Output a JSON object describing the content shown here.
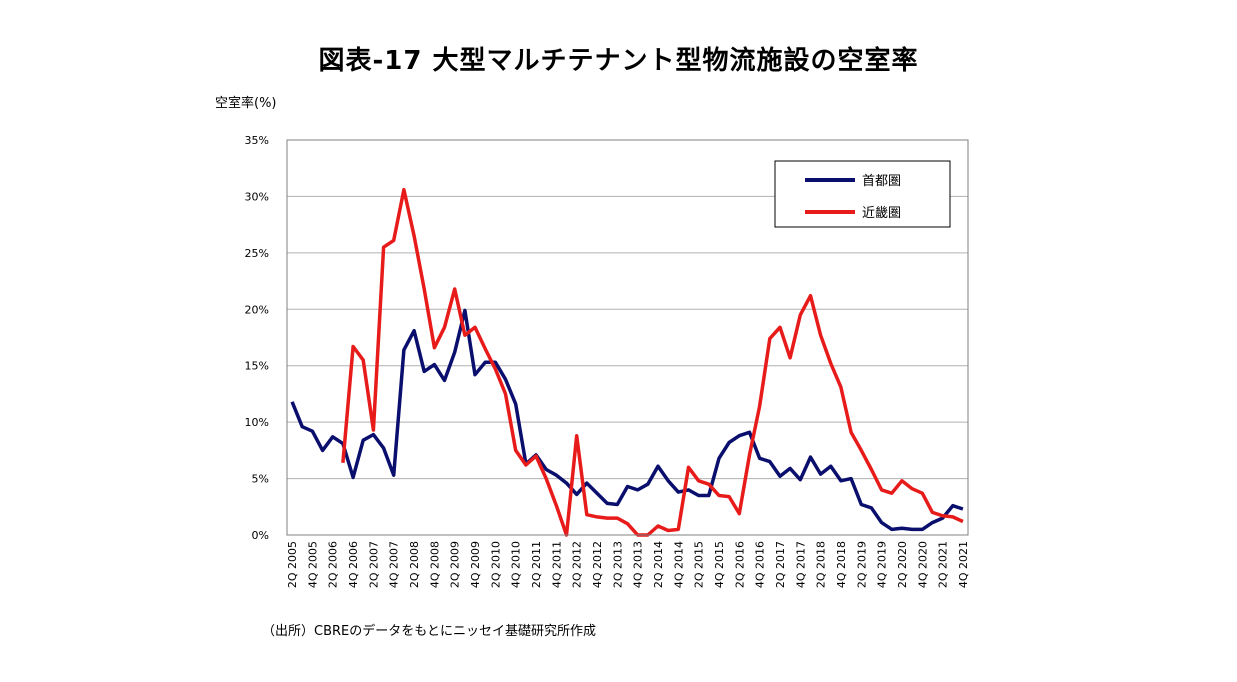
{
  "title": "図表-17  大型マルチテナント型物流施設の空室率",
  "source": "（出所）CBREのデータをもとにニッセイ基礎研究所作成",
  "colors": {
    "tokyo": "#0a0f6e",
    "kinki": "#e81b1b",
    "grid": "#b0b0b0"
  },
  "chart_data": {
    "type": "line",
    "ylabel": "空室率(%)",
    "ylim": [
      0,
      35
    ],
    "yticks": [
      "0%",
      "5%",
      "10%",
      "15%",
      "20%",
      "25%",
      "30%",
      "35%"
    ],
    "grid": true,
    "legend_position": "top-right",
    "x": [
      "2Q 2005",
      "3Q 2005",
      "4Q 2005",
      "1Q 2006",
      "2Q 2006",
      "3Q 2006",
      "4Q 2006",
      "1Q 2007",
      "2Q 2007",
      "3Q 2007",
      "4Q 2007",
      "1Q 2008",
      "2Q 2008",
      "3Q 2008",
      "4Q 2008",
      "1Q 2009",
      "2Q 2009",
      "3Q 2009",
      "4Q 2009",
      "1Q 2010",
      "2Q 2010",
      "3Q 2010",
      "4Q 2010",
      "1Q 2011",
      "2Q 2011",
      "3Q 2011",
      "4Q 2011",
      "1Q 2012",
      "2Q 2012",
      "3Q 2012",
      "4Q 2012",
      "1Q 2013",
      "2Q 2013",
      "3Q 2013",
      "4Q 2013",
      "1Q 2014",
      "2Q 2014",
      "3Q 2014",
      "4Q 2014",
      "1Q 2015",
      "2Q 2015",
      "3Q 2015",
      "4Q 2015",
      "1Q 2016",
      "2Q 2016",
      "3Q 2016",
      "4Q 2016",
      "1Q 2017",
      "2Q 2017",
      "3Q 2017",
      "4Q 2017",
      "1Q 2018",
      "2Q 2018",
      "3Q 2018",
      "4Q 2018",
      "1Q 2019",
      "2Q 2019",
      "3Q 2019",
      "4Q 2019",
      "1Q 2020",
      "2Q 2020",
      "3Q 2020",
      "4Q 2020",
      "1Q 2021",
      "2Q 2021",
      "3Q 2021",
      "4Q 2021"
    ],
    "xtick_labels": [
      "2Q 2005",
      "4Q 2005",
      "2Q 2006",
      "4Q 2006",
      "2Q 2007",
      "4Q 2007",
      "2Q 2008",
      "4Q 2008",
      "2Q 2009",
      "4Q 2009",
      "2Q 2010",
      "4Q 2010",
      "2Q 2011",
      "4Q 2011",
      "2Q 2012",
      "4Q 2012",
      "2Q 2013",
      "4Q 2013",
      "2Q 2014",
      "4Q 2014",
      "2Q 2015",
      "4Q 2015",
      "2Q 2016",
      "4Q 2016",
      "2Q 2017",
      "4Q 2017",
      "2Q 2018",
      "4Q 2018",
      "2Q 2019",
      "4Q 2019",
      "2Q 2020",
      "4Q 2020",
      "2Q 2021",
      "4Q 2021"
    ],
    "series": [
      {
        "name": "首都圏",
        "color_key": "tokyo",
        "values": [
          11.8,
          9.6,
          9.2,
          7.5,
          8.7,
          8.1,
          5.1,
          8.4,
          8.9,
          7.7,
          5.3,
          16.4,
          18.1,
          14.5,
          15.1,
          13.7,
          16.2,
          19.9,
          14.2,
          15.3,
          15.3,
          13.8,
          11.6,
          6.3,
          7.1,
          5.8,
          5.3,
          4.6,
          3.6,
          4.6,
          3.7,
          2.8,
          2.7,
          4.3,
          4.0,
          4.5,
          6.1,
          4.8,
          3.8,
          4.0,
          3.5,
          3.5,
          6.8,
          8.2,
          8.8,
          9.1,
          6.8,
          6.5,
          5.2,
          5.9,
          4.9,
          6.9,
          5.4,
          6.1,
          4.8,
          5.0,
          2.7,
          2.4,
          1.1,
          0.5,
          0.6,
          0.5,
          0.5,
          1.1,
          1.5,
          2.6,
          2.3
        ]
      },
      {
        "name": "近畿圏",
        "color_key": "kinki",
        "values": [
          null,
          null,
          null,
          null,
          null,
          6.4,
          16.7,
          15.5,
          9.3,
          25.5,
          26.1,
          30.6,
          26.5,
          21.8,
          16.6,
          18.4,
          21.8,
          17.7,
          18.4,
          16.5,
          14.7,
          12.5,
          7.5,
          6.2,
          7.0,
          5.0,
          2.6,
          0.0,
          8.8,
          1.8,
          1.6,
          1.5,
          1.5,
          1.0,
          0.0,
          0.0,
          0.8,
          0.4,
          0.5,
          6.0,
          4.8,
          4.5,
          3.5,
          3.4,
          1.9,
          7.1,
          11.4,
          17.4,
          18.4,
          15.7,
          19.5,
          21.2,
          17.7,
          15.2,
          13.1,
          9.1,
          7.5,
          5.8,
          4.0,
          3.7,
          4.8,
          4.1,
          3.7,
          2.0,
          1.7,
          1.6,
          1.2
        ]
      }
    ]
  }
}
